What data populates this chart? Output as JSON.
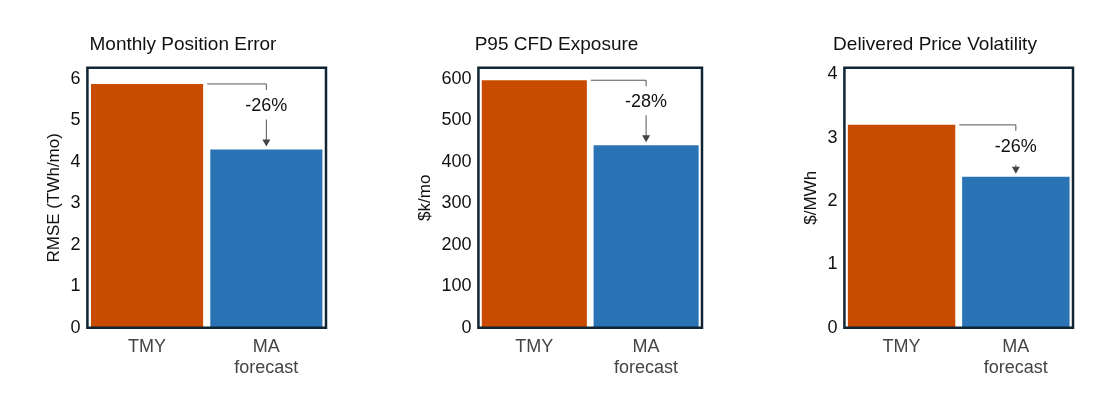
{
  "chart_data": [
    {
      "type": "bar",
      "title": "Monthly Position Error",
      "ylabel": "RMSE (TWh/mo)",
      "categories": [
        "TMY",
        "MA forecast"
      ],
      "values": [
        5.88,
        4.3
      ],
      "colors": [
        "#c84b00",
        "#2a74b5"
      ],
      "ylim": [
        0,
        6.27
      ],
      "yticks": [
        0,
        1,
        2,
        3,
        4,
        5,
        6
      ],
      "grid": false,
      "legend": false,
      "annotations": [
        {
          "text": "-26%",
          "x": "MA forecast",
          "y": 4.3
        }
      ]
    },
    {
      "type": "bar",
      "title": "P95 CFD Exposure",
      "ylabel": "$k/mo",
      "categories": [
        "TMY",
        "MA forecast"
      ],
      "values": [
        597,
        440
      ],
      "colors": [
        "#c84b00",
        "#2a74b5"
      ],
      "ylim": [
        0,
        627
      ],
      "yticks": [
        0,
        100,
        200,
        300,
        400,
        500,
        600
      ],
      "grid": false,
      "legend": false,
      "annotations": [
        {
          "text": "-28%",
          "x": "MA forecast",
          "y": 440
        }
      ]
    },
    {
      "type": "bar",
      "title": "Delivered Price Volatility",
      "ylabel": "$/MWh",
      "categories": [
        "TMY",
        "MA forecast"
      ],
      "values": [
        3.2,
        2.38
      ],
      "colors": [
        "#c84b00",
        "#2a74b5"
      ],
      "ylim": [
        0,
        4.1
      ],
      "yticks": [
        0,
        1,
        2,
        3,
        4
      ],
      "grid": false,
      "legend": false,
      "annotations": [
        {
          "text": "-26%",
          "x": "MA forecast",
          "y": 2.38
        }
      ]
    }
  ]
}
